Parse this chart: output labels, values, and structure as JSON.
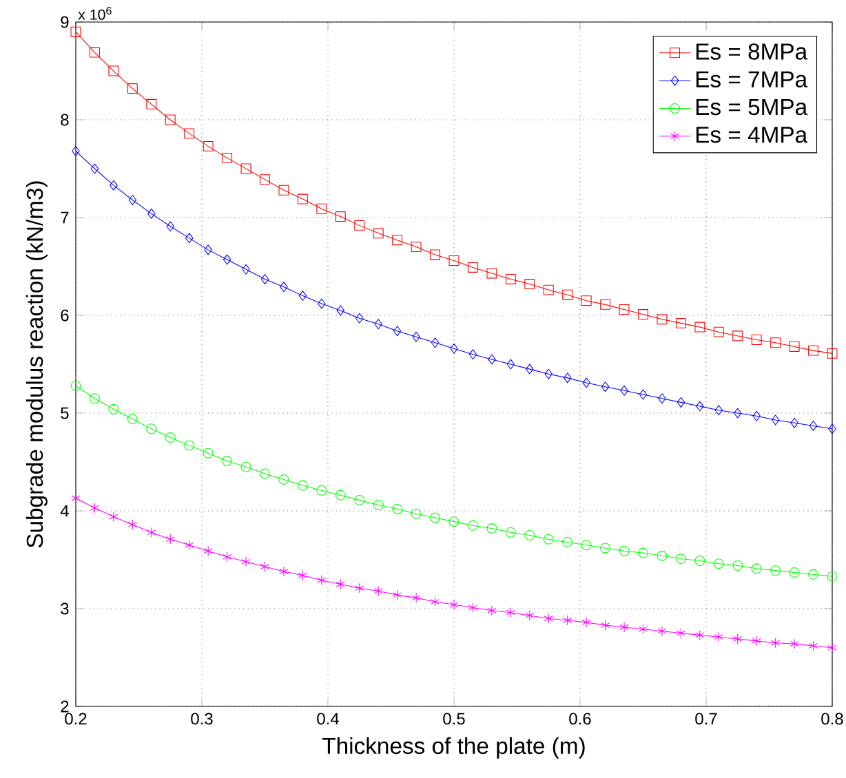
{
  "chart_data": {
    "type": "line",
    "xlabel": "Thickness of the plate (m)",
    "ylabel": "Subgrade modulus reaction (kN/m3)",
    "annotations": [
      "x 10$^{6}$"
    ],
    "x": [
      0.2,
      0.215,
      0.23,
      0.245,
      0.26,
      0.275,
      0.29,
      0.305,
      0.32,
      0.335,
      0.35,
      0.365,
      0.38,
      0.395,
      0.41,
      0.425,
      0.44,
      0.455,
      0.47,
      0.485,
      0.5,
      0.515,
      0.53,
      0.545,
      0.56,
      0.575,
      0.59,
      0.605,
      0.62,
      0.635,
      0.65,
      0.665,
      0.68,
      0.695,
      0.71,
      0.725,
      0.74,
      0.755,
      0.77,
      0.785,
      0.8
    ],
    "series": [
      {
        "name": "Es = 8MPa",
        "color": "#ff0000",
        "marker": "square",
        "values": [
          8.9,
          8.69,
          8.5,
          8.32,
          8.16,
          8.0,
          7.86,
          7.73,
          7.61,
          7.5,
          7.39,
          7.28,
          7.19,
          7.09,
          7.01,
          6.92,
          6.84,
          6.77,
          6.7,
          6.62,
          6.56,
          6.49,
          6.43,
          6.37,
          6.32,
          6.26,
          6.21,
          6.15,
          6.11,
          6.06,
          6.01,
          5.96,
          5.92,
          5.88,
          5.83,
          5.79,
          5.75,
          5.72,
          5.68,
          5.64,
          5.61
        ]
      },
      {
        "name": "Es = 7MPa",
        "color": "#0000ff",
        "marker": "diamond",
        "values": [
          7.68,
          7.5,
          7.33,
          7.18,
          7.04,
          6.91,
          6.79,
          6.67,
          6.57,
          6.47,
          6.37,
          6.29,
          6.2,
          6.12,
          6.05,
          5.97,
          5.91,
          5.84,
          5.78,
          5.72,
          5.66,
          5.6,
          5.55,
          5.5,
          5.45,
          5.4,
          5.36,
          5.31,
          5.27,
          5.23,
          5.19,
          5.15,
          5.11,
          5.07,
          5.03,
          5.0,
          4.97,
          4.93,
          4.9,
          4.87,
          4.84
        ]
      },
      {
        "name": "Es = 5MPa",
        "color": "#00ff00",
        "marker": "circle",
        "values": [
          5.28,
          5.15,
          5.04,
          4.94,
          4.84,
          4.75,
          4.67,
          4.59,
          4.51,
          4.45,
          4.38,
          4.32,
          4.26,
          4.21,
          4.16,
          4.11,
          4.06,
          4.02,
          3.97,
          3.93,
          3.89,
          3.85,
          3.82,
          3.78,
          3.75,
          3.71,
          3.68,
          3.65,
          3.62,
          3.59,
          3.57,
          3.54,
          3.51,
          3.49,
          3.46,
          3.44,
          3.41,
          3.39,
          3.37,
          3.35,
          3.33
        ]
      },
      {
        "name": "Es = 4MPa",
        "color": "#ff00ff",
        "marker": "cross",
        "values": [
          4.13,
          4.03,
          3.94,
          3.86,
          3.78,
          3.71,
          3.65,
          3.59,
          3.53,
          3.48,
          3.43,
          3.38,
          3.34,
          3.29,
          3.25,
          3.21,
          3.18,
          3.14,
          3.11,
          3.07,
          3.04,
          3.01,
          2.98,
          2.96,
          2.93,
          2.9,
          2.88,
          2.86,
          2.83,
          2.81,
          2.79,
          2.77,
          2.75,
          2.73,
          2.71,
          2.69,
          2.67,
          2.65,
          2.64,
          2.62,
          2.6
        ]
      }
    ],
    "xlim": [
      0.2,
      0.8
    ],
    "xticks": [
      0.2,
      0.3,
      0.4,
      0.5,
      0.6,
      0.7,
      0.8
    ],
    "ylim": [
      2,
      9
    ],
    "yticks": [
      2,
      3,
      4,
      5,
      6,
      7,
      8,
      9
    ],
    "grid": true,
    "legend": "top right",
    "line_style": "solid"
  }
}
